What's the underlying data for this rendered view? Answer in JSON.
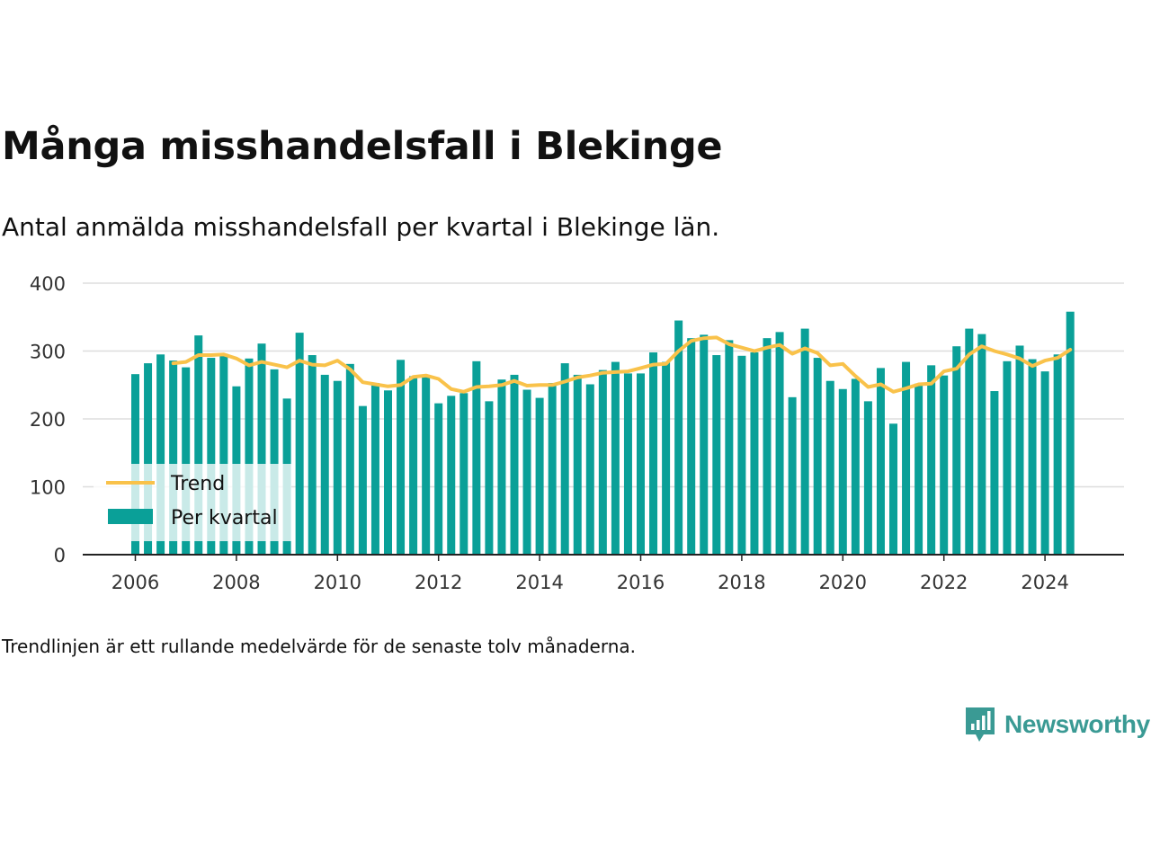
{
  "header": {
    "title": "Många misshandelsfall i Blekinge",
    "subtitle": "Antal anmälda misshandelsfall per kvartal i Blekinge län."
  },
  "footer": {
    "note": "Trendlinjen är ett rullande medelvärde för de senaste tolv månaderna.",
    "brand": "Newsworthy",
    "brand_icon": "newsworthy-logo-icon"
  },
  "colors": {
    "bar": "#0aa098",
    "trend": "#f9c24a",
    "grid": "#dddddd",
    "axis": "#222222"
  },
  "chart_data": {
    "type": "bar",
    "title": "Många misshandelsfall i Blekinge",
    "subtitle": "Antal anmälda misshandelsfall per kvartal i Blekinge län.",
    "xlabel": "",
    "ylabel": "",
    "ylim": [
      0,
      400
    ],
    "yticks": [
      0,
      100,
      200,
      300,
      400
    ],
    "xticks": [
      "2006",
      "2008",
      "2010",
      "2012",
      "2014",
      "2016",
      "2018",
      "2020",
      "2022",
      "2024"
    ],
    "grid": true,
    "legend_position": "bottom-left",
    "categories": [
      "2006 Q1",
      "2006 Q2",
      "2006 Q3",
      "2006 Q4",
      "2007 Q1",
      "2007 Q2",
      "2007 Q3",
      "2007 Q4",
      "2008 Q1",
      "2008 Q2",
      "2008 Q3",
      "2008 Q4",
      "2009 Q1",
      "2009 Q2",
      "2009 Q3",
      "2009 Q4",
      "2010 Q1",
      "2010 Q2",
      "2010 Q3",
      "2010 Q4",
      "2011 Q1",
      "2011 Q2",
      "2011 Q3",
      "2011 Q4",
      "2012 Q1",
      "2012 Q2",
      "2012 Q3",
      "2012 Q4",
      "2013 Q1",
      "2013 Q2",
      "2013 Q3",
      "2013 Q4",
      "2014 Q1",
      "2014 Q2",
      "2014 Q3",
      "2014 Q4",
      "2015 Q1",
      "2015 Q2",
      "2015 Q3",
      "2015 Q4",
      "2016 Q1",
      "2016 Q2",
      "2016 Q3",
      "2016 Q4",
      "2017 Q1",
      "2017 Q2",
      "2017 Q3",
      "2017 Q4",
      "2018 Q1",
      "2018 Q2",
      "2018 Q3",
      "2018 Q4",
      "2019 Q1",
      "2019 Q2",
      "2019 Q3",
      "2019 Q4",
      "2020 Q1",
      "2020 Q2",
      "2020 Q3",
      "2020 Q4",
      "2021 Q1",
      "2021 Q2",
      "2021 Q3",
      "2021 Q4",
      "2022 Q1",
      "2022 Q2",
      "2022 Q3",
      "2022 Q4",
      "2023 Q1",
      "2023 Q2",
      "2023 Q3",
      "2023 Q4",
      "2024 Q1",
      "2024 Q2",
      "2024 Q3"
    ],
    "series": [
      {
        "name": "Per kvartal",
        "kind": "bar",
        "values": [
          266,
          282,
          295,
          286,
          276,
          323,
          290,
          296,
          248,
          289,
          311,
          273,
          230,
          327,
          294,
          265,
          256,
          281,
          219,
          253,
          242,
          287,
          263,
          264,
          223,
          234,
          238,
          285,
          226,
          258,
          265,
          243,
          231,
          253,
          282,
          265,
          251,
          272,
          284,
          267,
          267,
          298,
          284,
          345,
          319,
          324,
          294,
          316,
          293,
          298,
          319,
          328,
          232,
          333,
          290,
          256,
          244,
          259,
          226,
          275,
          193,
          284,
          252,
          279,
          264,
          307,
          333,
          325,
          241,
          285,
          308,
          288,
          270,
          295,
          358
        ]
      },
      {
        "name": "Trend",
        "kind": "line",
        "values": [
          null,
          null,
          null,
          282,
          284,
          294,
          294,
          295,
          289,
          279,
          284,
          280,
          276,
          286,
          280,
          279,
          286,
          273,
          254,
          251,
          248,
          250,
          262,
          264,
          259,
          244,
          240,
          247,
          248,
          250,
          256,
          249,
          250,
          250,
          255,
          261,
          264,
          268,
          269,
          270,
          275,
          280,
          281,
          300,
          315,
          319,
          320,
          310,
          305,
          300,
          305,
          309,
          296,
          304,
          297,
          279,
          281,
          263,
          247,
          251,
          240,
          245,
          251,
          252,
          270,
          274,
          295,
          307,
          300,
          295,
          289,
          278,
          286,
          290,
          302
        ]
      }
    ]
  }
}
